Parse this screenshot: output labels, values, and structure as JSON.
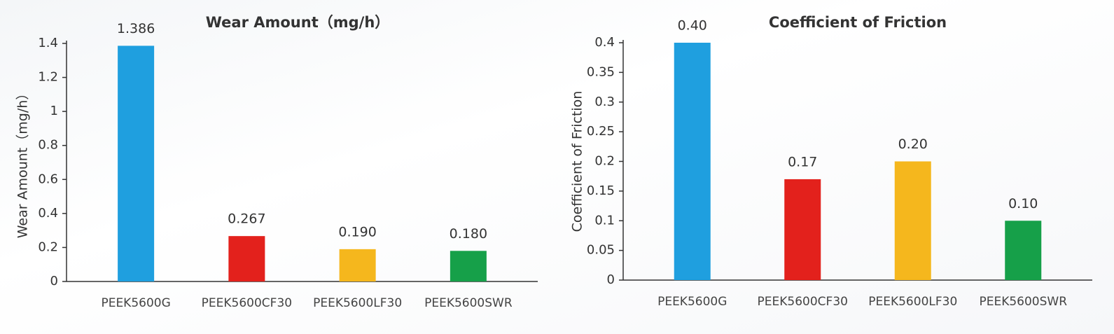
{
  "chart_data": [
    {
      "type": "bar",
      "title": "Wear Amount（mg/h）",
      "y_label": "Wear Amount（mg/h）",
      "categories": [
        "PEEK5600G",
        "PEEK5600CF30",
        "PEEK5600LF30",
        "PEEK5600SWR"
      ],
      "values": [
        1.386,
        0.267,
        0.19,
        0.18
      ],
      "value_labels": [
        "1.386",
        "0.267",
        "0.190",
        "0.180"
      ],
      "colors": [
        "#1f9fdf",
        "#e3211c",
        "#f5b71d",
        "#16a049"
      ],
      "ylim": [
        0,
        1.4
      ],
      "yticks": [
        0,
        0.2,
        0.4,
        0.6,
        0.8,
        1,
        1.2,
        1.4
      ]
    },
    {
      "type": "bar",
      "title": "Coefficient of Friction",
      "y_label": "Coefficient of Friction",
      "categories": [
        "PEEK5600G",
        "PEEK5600CF30",
        "PEEK5600LF30",
        "PEEK5600SWR"
      ],
      "values": [
        0.4,
        0.17,
        0.2,
        0.1
      ],
      "value_labels": [
        "0.40",
        "0.17",
        "0.20",
        "0.10"
      ],
      "colors": [
        "#1f9fdf",
        "#e3211c",
        "#f5b71d",
        "#16a049"
      ],
      "ylim": [
        0,
        0.4
      ],
      "yticks": [
        0,
        0.05,
        0.1,
        0.15,
        0.2,
        0.25,
        0.3,
        0.35,
        0.4
      ]
    }
  ]
}
